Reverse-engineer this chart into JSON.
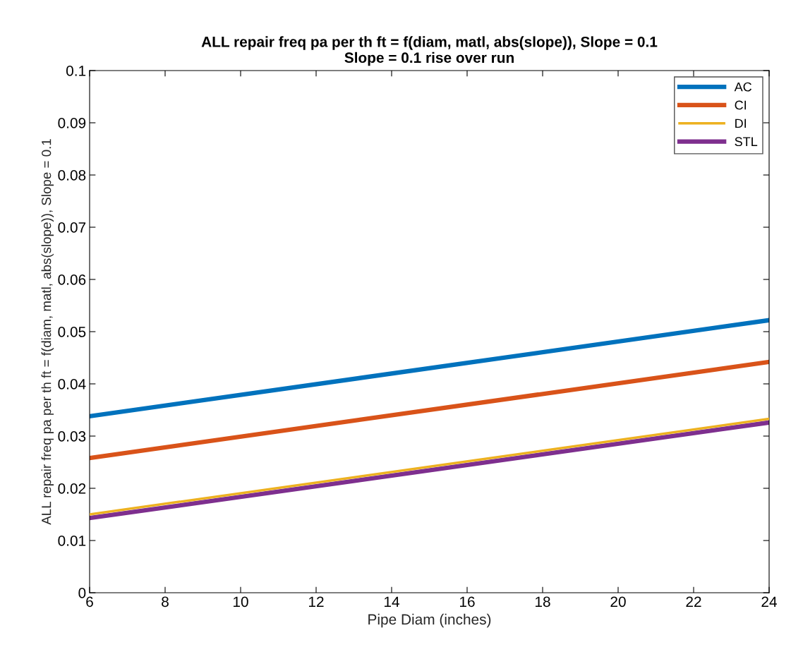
{
  "chart_data": {
    "type": "line",
    "title": "ALL repair freq pa per th ft = f(diam, matl, abs(slope)), Slope = 0.1",
    "subtitle": "Slope = 0.1 rise over run",
    "xlabel": "Pipe Diam (inches)",
    "ylabel": "ALL repair freq pa per th ft = f(diam, matl, abs(slope)), Slope = 0.1",
    "x": [
      6,
      24
    ],
    "series": [
      {
        "name": "AC",
        "color": "#0072bd",
        "values": [
          0.0338,
          0.0522
        ]
      },
      {
        "name": "CI",
        "color": "#d95319",
        "values": [
          0.0258,
          0.0442
        ]
      },
      {
        "name": "DI",
        "color": "#edb120",
        "values": [
          0.015,
          0.0333
        ]
      },
      {
        "name": "STL",
        "color": "#7e2f8e",
        "values": [
          0.0143,
          0.0326
        ]
      }
    ],
    "xlim": [
      6,
      24
    ],
    "xticks": [
      6,
      8,
      10,
      12,
      14,
      16,
      18,
      20,
      22,
      24
    ],
    "ylim": [
      0,
      0.1
    ],
    "yticks": [
      0,
      0.01,
      0.02,
      0.03,
      0.04,
      0.05,
      0.06,
      0.07,
      0.08,
      0.09,
      0.1
    ],
    "grid": false,
    "legend": "top right",
    "line_style": "solid",
    "marker": "none"
  }
}
